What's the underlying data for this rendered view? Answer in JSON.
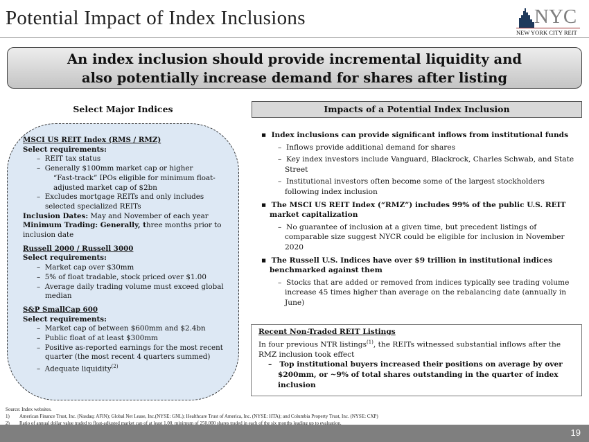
{
  "title": "Potential Impact of Index Inclusions",
  "logo": {
    "text": "NYC",
    "subtitle": "NEW YORK CITY REIT"
  },
  "banner": {
    "line1": "An index inclusion should provide incremental liquidity and",
    "line2": "also potentially increase demand for shares after listing"
  },
  "left": {
    "header": "Select Major Indices",
    "msci": {
      "name": "MSCI US REIT Index (RMS / RMZ)",
      "req": "Select requirements:",
      "items": [
        "REIT tax status",
        "Generally $100mm market cap or higher"
      ],
      "fasttrack": "“Fast-track” IPOs eligible for minimum float-adjusted market cap of $2bn",
      "item3": "Excludes mortgage REITs and only includes selected specialized REITs",
      "dates_label": "Inclusion Dates:",
      "dates": " May and November of each year",
      "trading_label": "Minimum Trading: Generally, t",
      "trading": "hree months prior to inclusion date"
    },
    "russell": {
      "name": "Russell 2000 / Russell 3000",
      "req": "Select requirements:",
      "items": [
        "Market cap over $30mm",
        "5% of float tradable, stock priced over $1.00",
        "Average daily trading volume must exceed global median"
      ]
    },
    "sp": {
      "name": "S&P SmallCap 600",
      "req": "Select requirements:",
      "items": [
        "Market cap of between $600mm and $2.4bn",
        "Public float of at least $300mm",
        "Positive as-reported earnings for the most recent quarter (the most recent 4 quarters summed)",
        "Adequate liquidity"
      ],
      "sup": "(2)"
    }
  },
  "right": {
    "header": "Impacts of a Potential Index Inclusion",
    "bullets": [
      {
        "text": "Index inclusions can provide significant inflows from institutional funds",
        "subs": [
          "Inflows provide additional demand for shares",
          "Key index investors include Vanguard, Blackrock, Charles Schwab, and State Street",
          "Institutional investors often become some of the largest stockholders following index inclusion"
        ]
      },
      {
        "text": "The MSCI US REIT Index (“RMZ”) includes 99% of the public U.S. REIT market capitalization",
        "subs": [
          "No guarantee of inclusion at a given time, but precedent listings of comparable size suggest NYCR could be eligible for inclusion in November 2020"
        ]
      },
      {
        "text": "The Russell U.S. Indices have over $9 trillion in institutional indices benchmarked against them",
        "subs": [
          "Stocks that are added or removed from indices typically see trading volume increase 45 times higher than average on the rebalancing date (annually in June)"
        ]
      }
    ]
  },
  "recent": {
    "heading": "Recent Non-Traded REIT Listings",
    "text1": "In four previous NTR listings",
    "sup": "(1)",
    "text2": ", the REITs witnessed substantial inflows after the RMZ inclusion took effect",
    "sub": "Top institutional buyers increased their positions on average by over $200mm, or ~9% of total shares outstanding in the quarter of index inclusion"
  },
  "footnotes": {
    "source": "Source: Index websites.",
    "notes": [
      {
        "n": "1)",
        "t": "American Finance Trust, Inc. (Nasdaq: AFIN); Global Net Lease, Inc.(NYSE: GNL); Healthcare Trust of America, Inc. (NYSE: HTA); and Columbia Property Trust, Inc. (NYSE: CXP)"
      },
      {
        "n": "2)",
        "t": "Ratio of annual dollar value traded to float-adjusted market cap of at least 1.00, minimum of 250,000 shares traded in each of the six months leading up to evaluation."
      }
    ]
  },
  "page_number": "19"
}
